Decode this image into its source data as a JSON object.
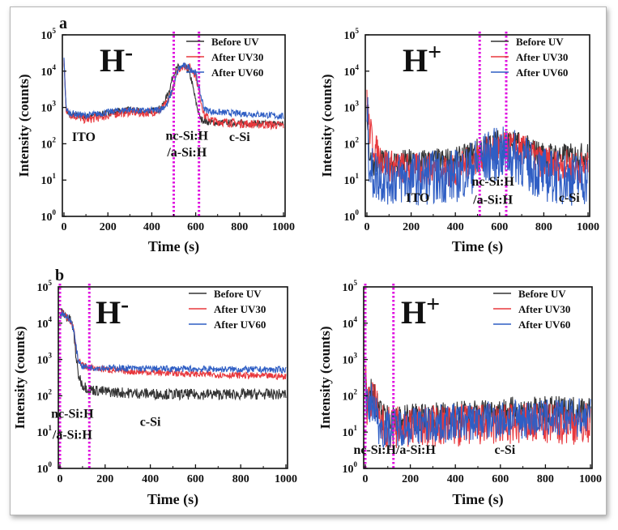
{
  "chart_data": [
    {
      "panel_label": "a",
      "type": "line",
      "ion": "H-",
      "title_main": "H",
      "title_sup": "-",
      "xlabel": "Time (s)",
      "ylabel": "Intensity (counts)",
      "xlim": [
        0,
        1000
      ],
      "ylim_log10": [
        0,
        5
      ],
      "yscale": "log",
      "xticks": [
        "0",
        "200",
        "400",
        "600",
        "800",
        "1000"
      ],
      "yticks": [
        "10^0",
        "10^1",
        "10^2",
        "10^3",
        "10^4",
        "10^5"
      ],
      "legend": [
        "Before UV",
        "After UV30",
        "After UV60"
      ],
      "legend_position": "top-right",
      "vlines": [
        500,
        615
      ],
      "annotations": [
        {
          "text": "ITO",
          "x": 90,
          "y": 120
        },
        {
          "text": "nc-Si:H",
          "x": 560,
          "y": 130
        },
        {
          "text": "/a-Si:H",
          "x": 560,
          "y": 45
        },
        {
          "text": "c-Si",
          "x": 800,
          "y": 120
        }
      ],
      "series": [
        {
          "name": "Before UV",
          "color": "#333333",
          "noise": 0.03,
          "points": [
            [
              0,
              20000
            ],
            [
              10,
              800
            ],
            [
              20,
              620
            ],
            [
              60,
              600
            ],
            [
              100,
              560
            ],
            [
              150,
              620
            ],
            [
              200,
              700
            ],
            [
              250,
              800
            ],
            [
              300,
              860
            ],
            [
              350,
              780
            ],
            [
              400,
              800
            ],
            [
              430,
              900
            ],
            [
              450,
              1100
            ],
            [
              480,
              3000
            ],
            [
              500,
              9000
            ],
            [
              520,
              13000
            ],
            [
              560,
              12000
            ],
            [
              580,
              6000
            ],
            [
              600,
              1500
            ],
            [
              620,
              500
            ],
            [
              650,
              400
            ],
            [
              700,
              380
            ],
            [
              800,
              370
            ],
            [
              900,
              360
            ],
            [
              1000,
              350
            ]
          ]
        },
        {
          "name": "After UV30",
          "color": "#e8383d",
          "noise": 0.04,
          "points": [
            [
              0,
              20000
            ],
            [
              10,
              900
            ],
            [
              20,
              680
            ],
            [
              60,
              560
            ],
            [
              100,
              460
            ],
            [
              150,
              520
            ],
            [
              200,
              600
            ],
            [
              250,
              700
            ],
            [
              300,
              760
            ],
            [
              350,
              700
            ],
            [
              400,
              740
            ],
            [
              440,
              850
            ],
            [
              470,
              1300
            ],
            [
              500,
              4000
            ],
            [
              520,
              11000
            ],
            [
              540,
              14000
            ],
            [
              570,
              13000
            ],
            [
              600,
              8000
            ],
            [
              620,
              2000
            ],
            [
              640,
              600
            ],
            [
              680,
              420
            ],
            [
              800,
              360
            ],
            [
              900,
              340
            ],
            [
              1000,
              320
            ]
          ]
        },
        {
          "name": "After UV60",
          "color": "#2f5ec4",
          "noise": 0.03,
          "points": [
            [
              0,
              20000
            ],
            [
              10,
              950
            ],
            [
              20,
              720
            ],
            [
              60,
              650
            ],
            [
              100,
              600
            ],
            [
              150,
              660
            ],
            [
              200,
              740
            ],
            [
              250,
              820
            ],
            [
              300,
              880
            ],
            [
              350,
              800
            ],
            [
              400,
              820
            ],
            [
              440,
              900
            ],
            [
              470,
              1200
            ],
            [
              500,
              4000
            ],
            [
              520,
              11000
            ],
            [
              540,
              14000
            ],
            [
              570,
              13000
            ],
            [
              600,
              9000
            ],
            [
              620,
              2500
            ],
            [
              640,
              900
            ],
            [
              680,
              750
            ],
            [
              800,
              680
            ],
            [
              900,
              640
            ],
            [
              1000,
              560
            ]
          ]
        }
      ]
    },
    {
      "panel_label": "",
      "type": "line",
      "ion": "H+",
      "title_main": "H",
      "title_sup": "+",
      "xlabel": "Time (s)",
      "ylabel": "Intensity (counts)",
      "xlim": [
        0,
        1000
      ],
      "ylim_log10": [
        0,
        5
      ],
      "yscale": "log",
      "xticks": [
        "0",
        "200",
        "400",
        "600",
        "800",
        "1000"
      ],
      "yticks": [
        "10^0",
        "10^1",
        "10^2",
        "10^3",
        "10^4",
        "10^5"
      ],
      "legend": [
        "Before UV",
        "After UV30",
        "After UV60"
      ],
      "legend_position": "top-right",
      "vlines": [
        510,
        630
      ],
      "annotations": [
        {
          "text": "ITO",
          "x": 230,
          "y": 2.5
        },
        {
          "text": "nc-Si:H",
          "x": 570,
          "y": 7
        },
        {
          "text": "/a-Si:H",
          "x": 570,
          "y": 2.2
        },
        {
          "text": "c-Si",
          "x": 915,
          "y": 2.5
        }
      ],
      "series": [
        {
          "name": "Before UV",
          "color": "#333333",
          "noise": 0.12,
          "points": [
            [
              0,
              1200
            ],
            [
              10,
              60
            ],
            [
              20,
              30
            ],
            [
              100,
              30
            ],
            [
              200,
              32
            ],
            [
              300,
              33
            ],
            [
              400,
              35
            ],
            [
              450,
              45
            ],
            [
              500,
              65
            ],
            [
              550,
              90
            ],
            [
              600,
              115
            ],
            [
              650,
              110
            ],
            [
              700,
              90
            ],
            [
              750,
              65
            ],
            [
              800,
              50
            ],
            [
              900,
              45
            ],
            [
              1000,
              48
            ]
          ]
        },
        {
          "name": "After UV30",
          "color": "#e8383d",
          "noise": 0.15,
          "points": [
            [
              0,
              2400
            ],
            [
              10,
              300
            ],
            [
              30,
              90
            ],
            [
              60,
              40
            ],
            [
              100,
              25
            ],
            [
              200,
              20
            ],
            [
              300,
              20
            ],
            [
              400,
              18
            ],
            [
              450,
              28
            ],
            [
              500,
              40
            ],
            [
              550,
              60
            ],
            [
              600,
              75
            ],
            [
              650,
              80
            ],
            [
              700,
              70
            ],
            [
              750,
              45
            ],
            [
              800,
              30
            ],
            [
              900,
              25
            ],
            [
              1000,
              22
            ]
          ]
        },
        {
          "name": "After UV60",
          "color": "#2f5ec4",
          "noise": 0.25,
          "points": [
            [
              0,
              1500
            ],
            [
              10,
              40
            ],
            [
              20,
              15
            ],
            [
              100,
              11
            ],
            [
              200,
              11
            ],
            [
              300,
              12
            ],
            [
              400,
              13
            ],
            [
              450,
              18
            ],
            [
              500,
              28
            ],
            [
              550,
              45
            ],
            [
              600,
              55
            ],
            [
              650,
              50
            ],
            [
              700,
              35
            ],
            [
              750,
              20
            ],
            [
              800,
              14
            ],
            [
              900,
              11
            ],
            [
              1000,
              11
            ]
          ]
        }
      ]
    },
    {
      "panel_label": "b",
      "type": "line",
      "ion": "H-",
      "title_main": "H",
      "title_sup": "-",
      "xlabel": "Time (s)",
      "ylabel": "Intensity (counts)",
      "xlim": [
        0,
        1000
      ],
      "ylim_log10": [
        0,
        5
      ],
      "yscale": "log",
      "xticks": [
        "0",
        "200",
        "400",
        "600",
        "800",
        "1000"
      ],
      "yticks": [
        "10^0",
        "10^1",
        "10^2",
        "10^3",
        "10^4",
        "10^5"
      ],
      "legend": [
        "Before UV",
        "After UV30",
        "After UV60"
      ],
      "legend_position": "top-right",
      "vlines": [
        0,
        130
      ],
      "annotations": [
        {
          "text": "nc-Si:H",
          "x": 55,
          "y": 25
        },
        {
          "text": "/a-Si:H",
          "x": 55,
          "y": 6.5
        },
        {
          "text": "c-Si",
          "x": 400,
          "y": 15
        }
      ],
      "series": [
        {
          "name": "Before UV",
          "color": "#333333",
          "noise": 0.05,
          "points": [
            [
              0,
              15000
            ],
            [
              10,
              20000
            ],
            [
              30,
              15000
            ],
            [
              50,
              11000
            ],
            [
              60,
              6000
            ],
            [
              70,
              1500
            ],
            [
              80,
              400
            ],
            [
              100,
              200
            ],
            [
              130,
              150
            ],
            [
              200,
              130
            ],
            [
              300,
              120
            ],
            [
              500,
              110
            ],
            [
              700,
              110
            ],
            [
              1000,
              110
            ]
          ]
        },
        {
          "name": "After UV30",
          "color": "#e8383d",
          "noise": 0.03,
          "points": [
            [
              0,
              15000
            ],
            [
              10,
              20000
            ],
            [
              30,
              15000
            ],
            [
              50,
              11000
            ],
            [
              60,
              7000
            ],
            [
              70,
              2500
            ],
            [
              80,
              1000
            ],
            [
              100,
              700
            ],
            [
              130,
              600
            ],
            [
              200,
              530
            ],
            [
              300,
              470
            ],
            [
              500,
              420
            ],
            [
              700,
              380
            ],
            [
              1000,
              340
            ]
          ]
        },
        {
          "name": "After UV60",
          "color": "#2f5ec4",
          "noise": 0.03,
          "points": [
            [
              0,
              15000
            ],
            [
              10,
              20000
            ],
            [
              30,
              15000
            ],
            [
              50,
              11000
            ],
            [
              60,
              7000
            ],
            [
              70,
              2500
            ],
            [
              80,
              1000
            ],
            [
              100,
              650
            ],
            [
              130,
              600
            ],
            [
              200,
              590
            ],
            [
              300,
              570
            ],
            [
              500,
              550
            ],
            [
              700,
              540
            ],
            [
              1000,
              520
            ]
          ]
        }
      ]
    },
    {
      "panel_label": "",
      "type": "line",
      "ion": "H+",
      "title_main": "H",
      "title_sup": "+",
      "xlabel": "Time (s)",
      "ylabel": "Intensity (counts)",
      "xlim": [
        0,
        1000
      ],
      "ylim_log10": [
        0,
        5
      ],
      "yscale": "log",
      "xticks": [
        "0",
        "200",
        "400",
        "600",
        "800",
        "1000"
      ],
      "yticks": [
        "10^0",
        "10^1",
        "10^2",
        "10^3",
        "10^4",
        "10^5"
      ],
      "legend": [
        "Before UV",
        "After UV30",
        "After UV60"
      ],
      "legend_position": "top-right",
      "vlines": [
        0,
        125
      ],
      "annotations": [
        {
          "text": "nc-Si:H/a-Si:H",
          "x": 130,
          "y": 2.5
        },
        {
          "text": "c-Si",
          "x": 620,
          "y": 2.5
        }
      ],
      "series": [
        {
          "name": "Before UV",
          "color": "#333333",
          "noise": 0.13,
          "points": [
            [
              0,
              1000
            ],
            [
              5,
              100
            ],
            [
              15,
              80
            ],
            [
              30,
              140
            ],
            [
              45,
              80
            ],
            [
              60,
              35
            ],
            [
              80,
              25
            ],
            [
              130,
              23
            ],
            [
              200,
              25
            ],
            [
              400,
              30
            ],
            [
              600,
              38
            ],
            [
              800,
              40
            ],
            [
              1000,
              42
            ]
          ]
        },
        {
          "name": "After UV30",
          "color": "#e8383d",
          "noise": 0.2,
          "points": [
            [
              0,
              600
            ],
            [
              5,
              60
            ],
            [
              15,
              50
            ],
            [
              30,
              100
            ],
            [
              45,
              60
            ],
            [
              60,
              20
            ],
            [
              80,
              14
            ],
            [
              130,
              13
            ],
            [
              200,
              14
            ],
            [
              400,
              15
            ],
            [
              600,
              16
            ],
            [
              800,
              17
            ],
            [
              1000,
              18
            ]
          ]
        },
        {
          "name": "After UV60",
          "color": "#2f5ec4",
          "noise": 0.18,
          "points": [
            [
              0,
              500
            ],
            [
              5,
              50
            ],
            [
              15,
              40
            ],
            [
              30,
              75
            ],
            [
              45,
              45
            ],
            [
              60,
              15
            ],
            [
              80,
              12
            ],
            [
              130,
              14
            ],
            [
              200,
              15
            ],
            [
              400,
              18
            ],
            [
              600,
              22
            ],
            [
              800,
              24
            ],
            [
              1000,
              26
            ]
          ]
        }
      ]
    }
  ]
}
